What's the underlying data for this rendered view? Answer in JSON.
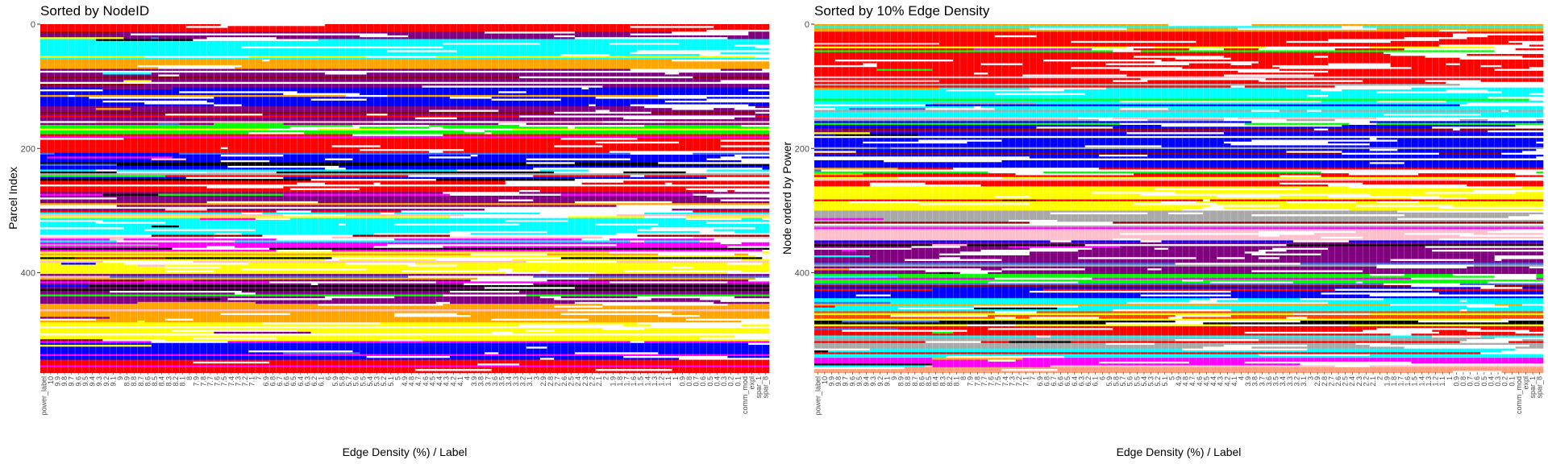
{
  "chart_data": [
    {
      "type": "heatmap",
      "title": "Sorted by NodeID",
      "xlabel": "Edge Density (%) / Label",
      "ylabel": "Parcel Index",
      "ylim": [
        0,
        560
      ],
      "y_reversed": true,
      "y_ticks": [
        0,
        200,
        400
      ],
      "x_categories": [
        "power_label",
        "10",
        "9.9",
        "9.8",
        "9.7",
        "9.6",
        "9.5",
        "9.4",
        "9.3",
        "9.2",
        "9.1",
        "9",
        "8.9",
        "8.8",
        "8.7",
        "8.6",
        "8.5",
        "8.4",
        "8.3",
        "8.2",
        "8.1",
        "8",
        "7.9",
        "7.8",
        "7.7",
        "7.6",
        "7.5",
        "7.4",
        "7.3",
        "7.2",
        "7.1",
        "7",
        "6.9",
        "6.8",
        "6.7",
        "6.6",
        "6.5",
        "6.4",
        "6.3",
        "6.2",
        "6.1",
        "6",
        "5.9",
        "5.8",
        "5.7",
        "5.6",
        "5.5",
        "5.4",
        "5.3",
        "5.2",
        "5.1",
        "5",
        "4.9",
        "4.8",
        "4.7",
        "4.6",
        "4.5",
        "4.4",
        "4.3",
        "4.2",
        "4.1",
        "4",
        "3.9",
        "3.8",
        "3.7",
        "3.6",
        "3.5",
        "3.4",
        "3.3",
        "3.2",
        "3.1",
        "3",
        "2.9",
        "2.8",
        "2.7",
        "2.6",
        "2.5",
        "2.4",
        "2.3",
        "2.2",
        "2.1",
        "2",
        "1.9",
        "1.8",
        "1.7",
        "1.6",
        "1.5",
        "1.4",
        "1.3",
        "1.2",
        "1.1",
        "1",
        "0.9",
        "0.8",
        "0.7",
        "0.6",
        "0.5",
        "0.4",
        "0.3",
        "0.2",
        "0.1",
        "comm_mod",
        "expl",
        "spar_1",
        "spar_8"
      ],
      "bands": [
        {
          "y0": 0,
          "y1": 10,
          "color": "#ff0000"
        },
        {
          "y0": 10,
          "y1": 22,
          "color": "#800080"
        },
        {
          "y0": 22,
          "y1": 55,
          "color": "#00ffff"
        },
        {
          "y0": 55,
          "y1": 70,
          "color": "#ffa500"
        },
        {
          "y0": 70,
          "y1": 100,
          "color": "#800080"
        },
        {
          "y0": 100,
          "y1": 130,
          "color": "#0000ff"
        },
        {
          "y0": 130,
          "y1": 160,
          "color": "#800080"
        },
        {
          "y0": 160,
          "y1": 175,
          "color": "#00ff00"
        },
        {
          "y0": 175,
          "y1": 210,
          "color": "#ff0000"
        },
        {
          "y0": 210,
          "y1": 240,
          "color": "#0000ff"
        },
        {
          "y0": 240,
          "y1": 270,
          "color": "#ff0000"
        },
        {
          "y0": 270,
          "y1": 300,
          "color": "#800080"
        },
        {
          "y0": 300,
          "y1": 345,
          "color": "#00ffff"
        },
        {
          "y0": 345,
          "y1": 370,
          "color": "#ff00ff"
        },
        {
          "y0": 370,
          "y1": 400,
          "color": "#ffff00"
        },
        {
          "y0": 400,
          "y1": 450,
          "color": "#800080"
        },
        {
          "y0": 450,
          "y1": 480,
          "color": "#ffa500"
        },
        {
          "y0": 480,
          "y1": 510,
          "color": "#ffff00"
        },
        {
          "y0": 510,
          "y1": 540,
          "color": "#0000ff"
        },
        {
          "y0": 540,
          "y1": 560,
          "color": "#ff0000"
        }
      ]
    },
    {
      "type": "heatmap",
      "title": "Sorted by 10% Edge Density",
      "xlabel": "Edge Density (%) / Label",
      "ylabel": "Node orderd by Power",
      "ylim": [
        0,
        560
      ],
      "y_reversed": true,
      "y_ticks": [
        0,
        200,
        400
      ],
      "x_categories": [
        "power_label",
        "10",
        "9.9",
        "9.8",
        "9.7",
        "9.6",
        "9.5",
        "9.4",
        "9.3",
        "9.2",
        "9.1",
        "9",
        "8.9",
        "8.8",
        "8.7",
        "8.6",
        "8.5",
        "8.4",
        "8.3",
        "8.2",
        "8.1",
        "8",
        "7.9",
        "7.8",
        "7.7",
        "7.6",
        "7.5",
        "7.4",
        "7.3",
        "7.2",
        "7.1",
        "7",
        "6.9",
        "6.8",
        "6.7",
        "6.6",
        "6.5",
        "6.4",
        "6.3",
        "6.2",
        "6.1",
        "6",
        "5.9",
        "5.8",
        "5.7",
        "5.6",
        "5.5",
        "5.4",
        "5.3",
        "5.2",
        "5.1",
        "5",
        "4.9",
        "4.8",
        "4.7",
        "4.6",
        "4.5",
        "4.4",
        "4.3",
        "4.2",
        "4.1",
        "4",
        "3.9",
        "3.8",
        "3.7",
        "3.6",
        "3.5",
        "3.4",
        "3.3",
        "3.2",
        "3.1",
        "3",
        "2.9",
        "2.8",
        "2.7",
        "2.6",
        "2.5",
        "2.4",
        "2.3",
        "2.2",
        "2.1",
        "2",
        "1.9",
        "1.8",
        "1.7",
        "1.6",
        "1.5",
        "1.4",
        "1.3",
        "1.2",
        "1.1",
        "1",
        "0.9",
        "0.8",
        "0.7",
        "0.6",
        "0.5",
        "0.4",
        "0.3",
        "0.2",
        "0.1",
        "comm_mod",
        "expl",
        "spar_1",
        "spar_8"
      ],
      "bands": [
        {
          "y0": 0,
          "y1": 10,
          "color": "#ffa500"
        },
        {
          "y0": 10,
          "y1": 100,
          "color": "#ff0000"
        },
        {
          "y0": 100,
          "y1": 150,
          "color": "#00ffff"
        },
        {
          "y0": 150,
          "y1": 230,
          "color": "#0000ff"
        },
        {
          "y0": 230,
          "y1": 260,
          "color": "#ff0000"
        },
        {
          "y0": 260,
          "y1": 300,
          "color": "#ffff00"
        },
        {
          "y0": 300,
          "y1": 330,
          "color": "#a9a9a9"
        },
        {
          "y0": 330,
          "y1": 350,
          "color": "#ffc0cb"
        },
        {
          "y0": 350,
          "y1": 400,
          "color": "#800080"
        },
        {
          "y0": 400,
          "y1": 420,
          "color": "#00ff00"
        },
        {
          "y0": 420,
          "y1": 440,
          "color": "#0000ff"
        },
        {
          "y0": 440,
          "y1": 460,
          "color": "#00ffff"
        },
        {
          "y0": 460,
          "y1": 475,
          "color": "#ff4500"
        },
        {
          "y0": 475,
          "y1": 485,
          "color": "#000000"
        },
        {
          "y0": 485,
          "y1": 500,
          "color": "#ff0000"
        },
        {
          "y0": 500,
          "y1": 520,
          "color": "#a9a9a9"
        },
        {
          "y0": 520,
          "y1": 535,
          "color": "#00ffff"
        },
        {
          "y0": 535,
          "y1": 550,
          "color": "#ff00ff"
        },
        {
          "y0": 550,
          "y1": 560,
          "color": "#ffa07a"
        }
      ]
    }
  ]
}
